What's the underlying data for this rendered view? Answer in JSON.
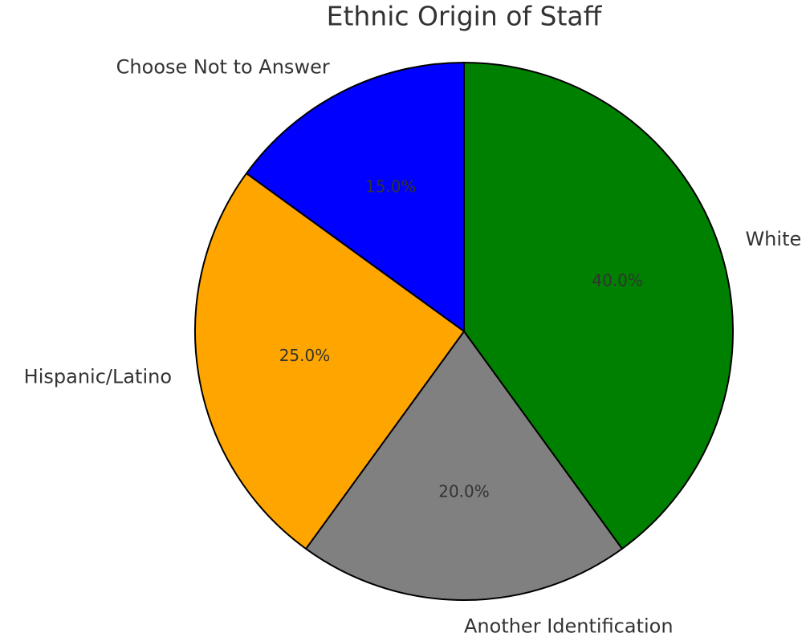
{
  "chart_data": {
    "type": "pie",
    "title": "Ethnic Origin of Staff",
    "categories": [
      "White",
      "Another Identification",
      "Hispanic/Latino",
      "Choose Not to Answer"
    ],
    "values": [
      40,
      20,
      25,
      15
    ],
    "value_labels": [
      "40.0%",
      "20.0%",
      "25.0%",
      "15.0%"
    ],
    "colors": [
      "#008000",
      "#808080",
      "#ffa500",
      "#0000ff"
    ],
    "start_angle": 90,
    "counterclock": false
  }
}
